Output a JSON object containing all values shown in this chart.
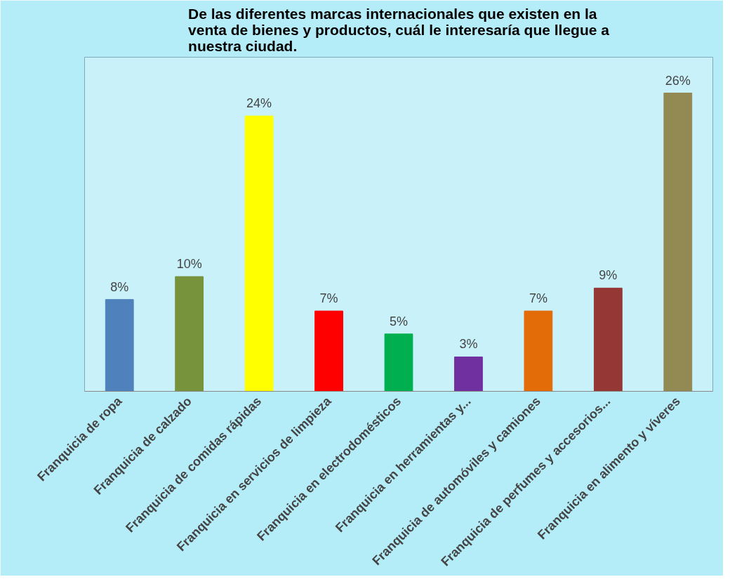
{
  "chart_data": {
    "type": "bar",
    "title": "De las diferentes marcas internacionales que existen en la venta de bienes y productos, cuál le interesaría que llegue a nuestra ciudad.",
    "categories": [
      "Franquicia de ropa",
      "Franquicia de calzado",
      "Franquicia de comidas rápidas",
      "Franquicia en servicios de limpieza",
      "Franquicia en electrodomésticos",
      "Franquicia en herramientas y...",
      "Franquicia de automóviles y camiones",
      "Franquicia de perfumes y accesorios...",
      "Franquicia en alimento y víveres"
    ],
    "values": [
      8,
      10,
      24,
      7,
      5,
      3,
      7,
      9,
      26
    ],
    "value_labels": [
      "8%",
      "10%",
      "24%",
      "7%",
      "5%",
      "3%",
      "7%",
      "9%",
      "26%"
    ],
    "colors": [
      "#4f81bd",
      "#77933c",
      "#ffff00",
      "#ff0000",
      "#00b050",
      "#7030a0",
      "#e36c09",
      "#953735",
      "#938953"
    ],
    "grid": false
  }
}
